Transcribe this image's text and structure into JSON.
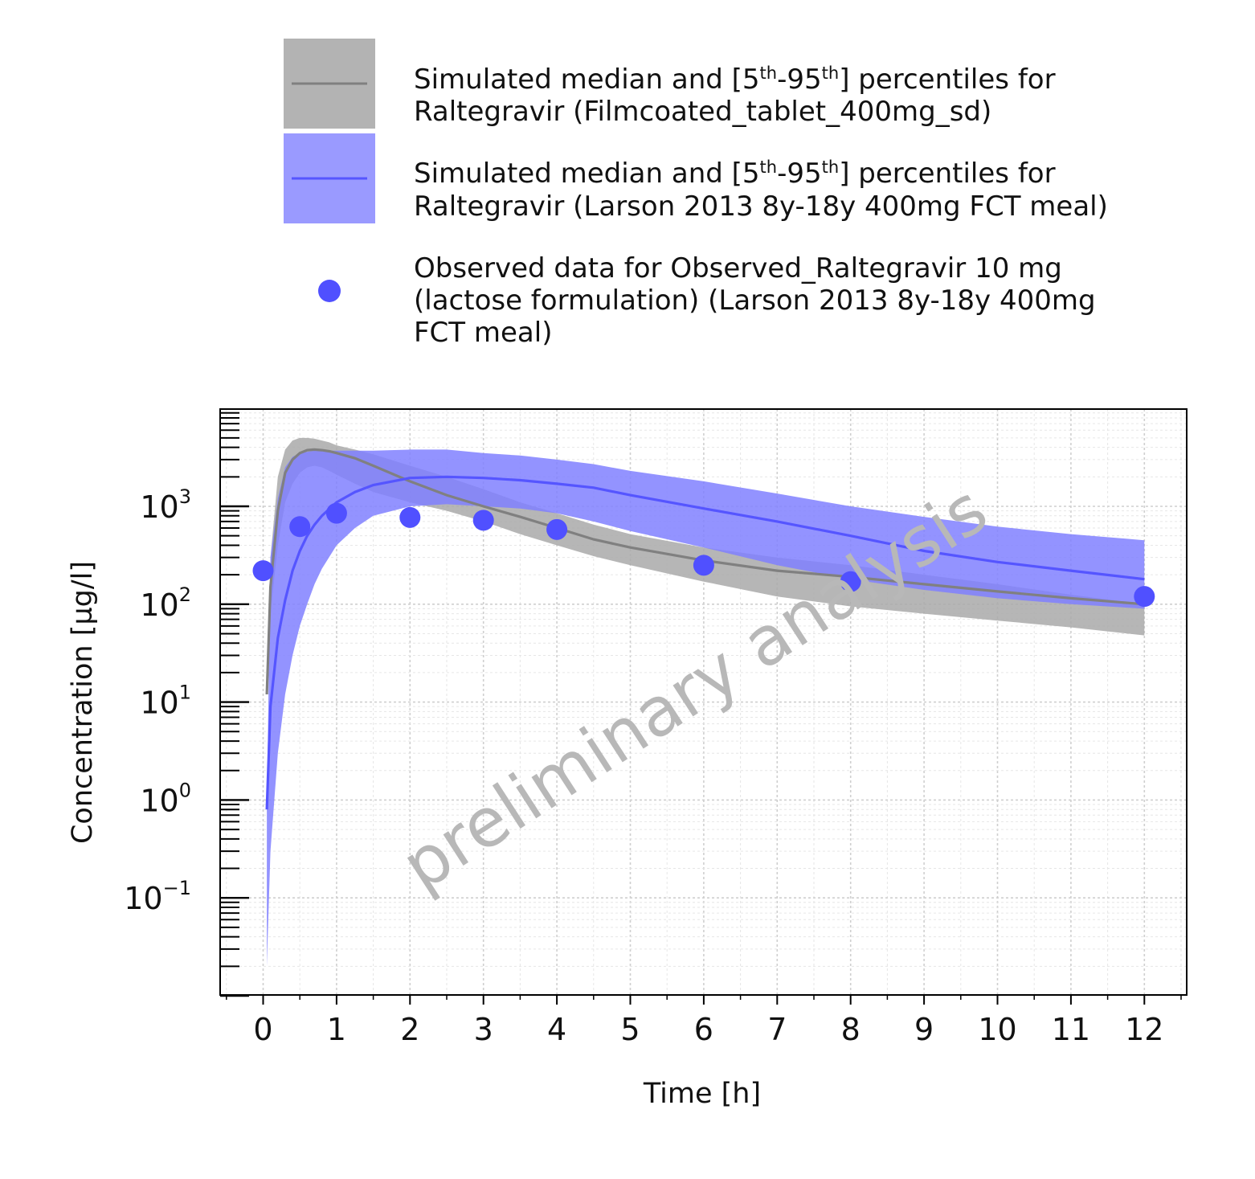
{
  "chart_data": {
    "type": "line",
    "title": "",
    "xlabel": "Time [h]",
    "ylabel": "Concentration [µg/l]",
    "x_scale": "linear",
    "y_scale": "log",
    "xlim": [
      -0.6,
      12.6
    ],
    "ylim": [
      0.01,
      10000
    ],
    "x_ticks": [
      0,
      1,
      2,
      3,
      4,
      5,
      6,
      7,
      8,
      9,
      10,
      11,
      12
    ],
    "y_ticks": [
      {
        "value": 0.1,
        "base": "10",
        "exp": "−1"
      },
      {
        "value": 1,
        "base": "10",
        "exp": "0"
      },
      {
        "value": 10,
        "base": "10",
        "exp": "1"
      },
      {
        "value": 100,
        "base": "10",
        "exp": "2"
      },
      {
        "value": 1000,
        "base": "10",
        "exp": "3"
      }
    ],
    "grid": true,
    "watermark": "preliminary analysis",
    "legend": {
      "position": "top",
      "entries": [
        {
          "line1_pre": "Simulated median and [5",
          "sup1": "th",
          "line1_mid": "-95",
          "sup2": "th",
          "line1_post": "] percentiles for",
          "line2": "Raltegravir (Filmcoated_tablet_400mg_sd)"
        },
        {
          "line1_pre": "Simulated median and [5",
          "sup1": "th",
          "line1_mid": "-95",
          "sup2": "th",
          "line1_post": "] percentiles for",
          "line2": "Raltegravir (Larson 2013 8y-18y 400mg FCT meal)"
        },
        {
          "line1": "Observed data for Observed_Raltegravir 10 mg",
          "line2": "(lactose formulation) (Larson 2013 8y-18y 400mg",
          "line3": "FCT meal)"
        }
      ]
    },
    "series": [
      {
        "kind": "median_with_band",
        "color": "#808080",
        "band_color": "#a9a9a9",
        "x": [
          0.05,
          0.1,
          0.2,
          0.3,
          0.4,
          0.5,
          0.6,
          0.7,
          0.8,
          0.9,
          1.0,
          1.25,
          1.5,
          2,
          2.5,
          3,
          3.5,
          4,
          4.5,
          5,
          6,
          7,
          8,
          9,
          10,
          11,
          12
        ],
        "median": [
          12,
          150,
          900,
          2200,
          3000,
          3500,
          3750,
          3800,
          3750,
          3650,
          3500,
          3100,
          2600,
          1800,
          1300,
          1000,
          780,
          600,
          460,
          380,
          280,
          220,
          190,
          160,
          135,
          115,
          100
        ],
        "lower": [
          12,
          80,
          400,
          1100,
          1700,
          2200,
          2500,
          2600,
          2500,
          2300,
          2100,
          1700,
          1400,
          1100,
          900,
          700,
          520,
          400,
          310,
          250,
          170,
          120,
          95,
          80,
          68,
          58,
          48
        ],
        "upper": [
          12,
          300,
          2000,
          3800,
          4700,
          5000,
          5000,
          4900,
          4700,
          4500,
          4200,
          3800,
          3400,
          2600,
          2000,
          1500,
          1100,
          850,
          650,
          520,
          380,
          300,
          250,
          200,
          160,
          125,
          100
        ]
      },
      {
        "kind": "median_with_band",
        "color": "#5555ff",
        "band_color": "#8080ff",
        "x": [
          0.05,
          0.1,
          0.2,
          0.3,
          0.4,
          0.5,
          0.6,
          0.7,
          0.8,
          1.0,
          1.25,
          1.5,
          2,
          2.5,
          3,
          3.5,
          4,
          4.5,
          5,
          6,
          7,
          8,
          9,
          10,
          11,
          12
        ],
        "median": [
          0.8,
          9,
          45,
          110,
          220,
          350,
          500,
          650,
          800,
          1100,
          1400,
          1650,
          1950,
          2000,
          1950,
          1850,
          1700,
          1550,
          1300,
          950,
          700,
          500,
          350,
          270,
          220,
          180
        ],
        "lower": [
          0.02,
          0.3,
          3,
          12,
          30,
          60,
          100,
          160,
          230,
          400,
          600,
          800,
          1000,
          1050,
          1000,
          950,
          850,
          700,
          560,
          380,
          250,
          180,
          140,
          115,
          100,
          90
        ],
        "upper": [
          0.8,
          300,
          1200,
          2500,
          3200,
          3500,
          3600,
          3700,
          3700,
          3700,
          3700,
          3700,
          3800,
          3800,
          3500,
          3300,
          3000,
          2700,
          2300,
          1800,
          1350,
          1000,
          780,
          620,
          520,
          450
        ]
      },
      {
        "kind": "scatter",
        "color": "#5050ff",
        "x": [
          0,
          0.5,
          1,
          2,
          3,
          4,
          6,
          8,
          12
        ],
        "y": [
          220,
          620,
          850,
          770,
          720,
          580,
          250,
          170,
          120
        ]
      }
    ]
  }
}
